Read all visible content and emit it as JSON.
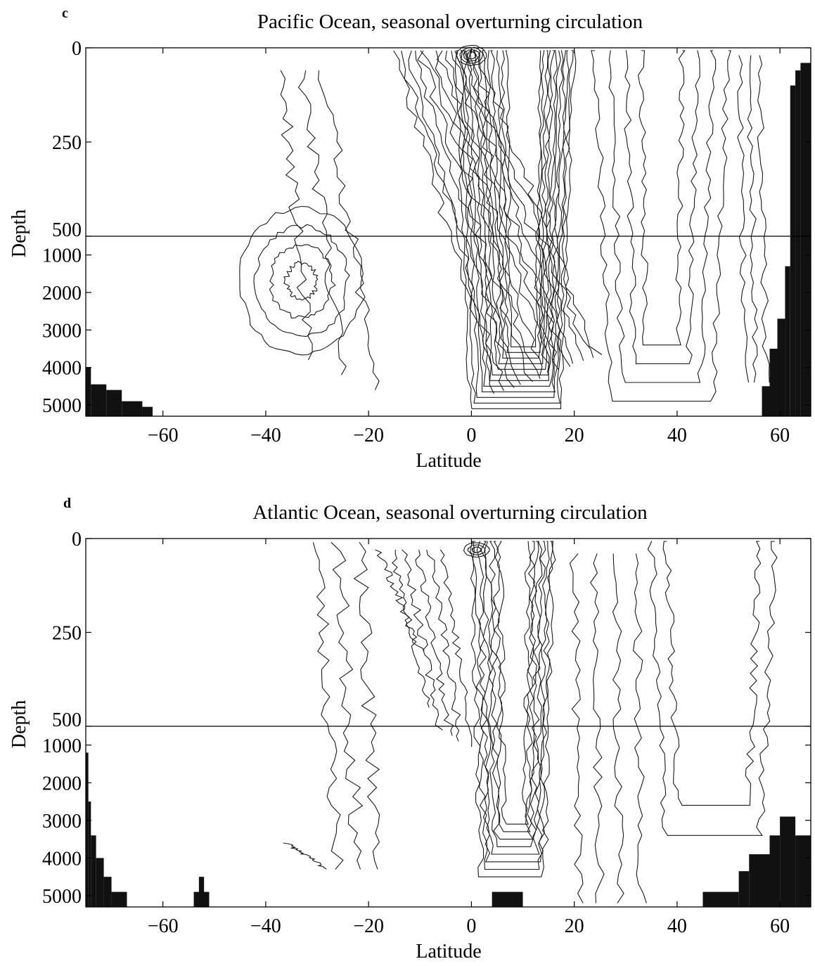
{
  "chart_data": [
    {
      "panel": "c",
      "type": "contour",
      "title": "Pacific Ocean, seasonal overturning circulation",
      "xlabel": "Latitude",
      "ylabel": "Depth",
      "xlim": [
        -75,
        66
      ],
      "x_ticks": [
        -60,
        -40,
        -20,
        0,
        20,
        40,
        60
      ],
      "depth_axis": {
        "upper_range": [
          0,
          500
        ],
        "lower_range": [
          500,
          5300
        ],
        "upper_ticks": [
          0,
          250,
          500
        ],
        "lower_ticks": [
          1000,
          2000,
          3000,
          4000,
          5000
        ],
        "break_at": 500
      },
      "land_color": "#111111",
      "land": [
        {
          "x": [
            -75,
            -74
          ],
          "depth_top": 4000
        },
        {
          "x": [
            -74,
            -71
          ],
          "depth_top": 4450
        },
        {
          "x": [
            -71,
            -68
          ],
          "depth_top": 4600
        },
        {
          "x": [
            -68,
            -64
          ],
          "depth_top": 4900
        },
        {
          "x": [
            -64,
            -62
          ],
          "depth_top": 5050
        },
        {
          "x": [
            56.5,
            58
          ],
          "depth_top": 4500
        },
        {
          "x": [
            58,
            59.5
          ],
          "depth_top": 3500
        },
        {
          "x": [
            59.5,
            61
          ],
          "depth_top": 2700
        },
        {
          "x": [
            61,
            62
          ],
          "depth_top": 1300
        },
        {
          "x": [
            62,
            63
          ],
          "depth_top": 100
        },
        {
          "x": [
            63,
            64
          ],
          "depth_top": 60
        },
        {
          "x": [
            64,
            66
          ],
          "depth_top": 40
        }
      ]
    },
    {
      "panel": "d",
      "type": "contour",
      "title": "Atlantic Ocean, seasonal overturning circulation",
      "xlabel": "Latitude",
      "ylabel": "Depth",
      "xlim": [
        -75,
        66
      ],
      "x_ticks": [
        -60,
        -40,
        -20,
        0,
        20,
        40,
        60
      ],
      "depth_axis": {
        "upper_range": [
          0,
          500
        ],
        "lower_range": [
          500,
          5300
        ],
        "upper_ticks": [
          0,
          250,
          500
        ],
        "lower_ticks": [
          1000,
          2000,
          3000,
          4000,
          5000
        ],
        "break_at": 500
      },
      "land_color": "#111111",
      "land": [
        {
          "x": [
            -75,
            -74.5
          ],
          "depth_top": 1200
        },
        {
          "x": [
            -74.5,
            -74
          ],
          "depth_top": 2500
        },
        {
          "x": [
            -74,
            -73
          ],
          "depth_top": 3400
        },
        {
          "x": [
            -73,
            -71.5
          ],
          "depth_top": 4000
        },
        {
          "x": [
            -71.5,
            -70
          ],
          "depth_top": 4500
        },
        {
          "x": [
            -70,
            -67
          ],
          "depth_top": 4900
        },
        {
          "x": [
            -54,
            -51
          ],
          "depth_top": 4900
        },
        {
          "x": [
            -53,
            -52
          ],
          "depth_top": 4500
        },
        {
          "x": [
            4,
            10
          ],
          "depth_top": 4900
        },
        {
          "x": [
            45,
            52
          ],
          "depth_top": 4900
        },
        {
          "x": [
            52,
            54
          ],
          "depth_top": 4350
        },
        {
          "x": [
            54,
            58
          ],
          "depth_top": 3900
        },
        {
          "x": [
            58,
            60
          ],
          "depth_top": 3400
        },
        {
          "x": [
            60,
            63
          ],
          "depth_top": 2900
        },
        {
          "x": [
            63,
            66
          ],
          "depth_top": 3400
        }
      ]
    }
  ]
}
